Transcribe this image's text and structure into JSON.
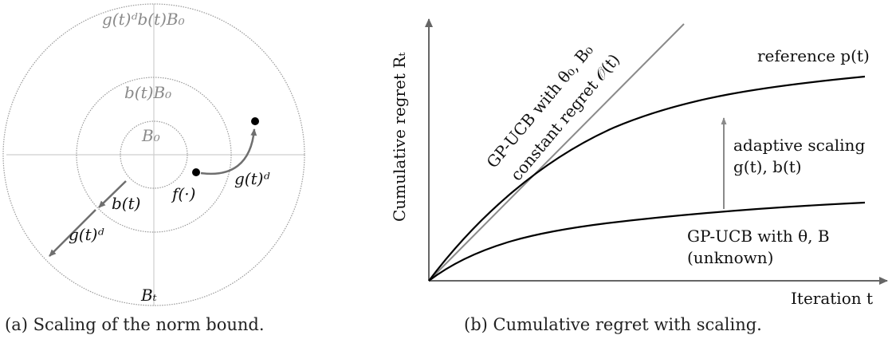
{
  "panel_a": {
    "caption": "(a) Scaling of the norm bound.",
    "labels": {
      "outer_circle": "g(t)ᵈb(t)B₀",
      "middle_circle": "b(t)B₀",
      "inner_circle": "B₀",
      "arrow_short": "b(t)",
      "arrow_long": "g(t)ᵈ",
      "curved_arrow": "g(t)ᵈ",
      "function_point": "f(·)",
      "bottom": "Bₜ"
    }
  },
  "panel_b": {
    "caption": "(b) Cumulative regret with scaling.",
    "ylabel": "Cumulative regret Rₜ",
    "xlabel": "Iteration t",
    "labels": {
      "reference": "reference p(t)",
      "diag_line1": "GP-UCB with θ₀, B₀",
      "diag_line2": "constant regret 𝒪(t)",
      "adaptive_line1": "adaptive scaling",
      "adaptive_line2": "g(t), b(t)",
      "lower_line1": "GP-UCB with θ, B",
      "lower_line2": "(unknown)"
    }
  },
  "colors": {
    "gray_line": "#8a8a8a",
    "black_line": "#000000",
    "light_gray": "#c8c8c8"
  }
}
